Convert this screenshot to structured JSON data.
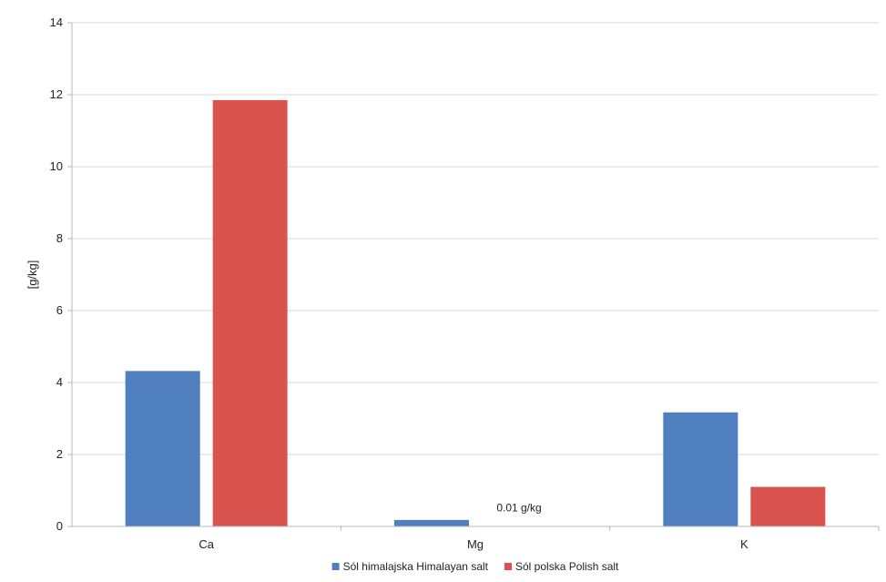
{
  "chart_data": {
    "type": "bar",
    "title": "",
    "xlabel": "",
    "ylabel": "[g/kg]",
    "ylim": [
      0,
      14
    ],
    "yticks": [
      0,
      2,
      4,
      6,
      8,
      10,
      12,
      14
    ],
    "grid": true,
    "legend_position": "bottom",
    "categories": [
      "Ca",
      "Mg",
      "K"
    ],
    "series": [
      {
        "name": "Sól himalajska Himalayan salt",
        "color": "#4f7fbf",
        "values": [
          4.32,
          0.18,
          3.17
        ]
      },
      {
        "name": "Sól polska Polish salt",
        "color": "#d9534f",
        "values": [
          11.85,
          0.01,
          1.1
        ]
      }
    ],
    "annotations": [
      {
        "text": "0.01 g/kg",
        "category": "Mg",
        "series": 1,
        "y": 0.22
      }
    ]
  }
}
